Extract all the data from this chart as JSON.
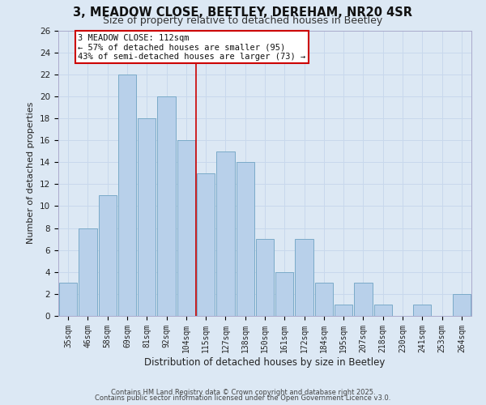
{
  "title": "3, MEADOW CLOSE, BEETLEY, DEREHAM, NR20 4SR",
  "subtitle": "Size of property relative to detached houses in Beetley",
  "xlabel": "Distribution of detached houses by size in Beetley",
  "ylabel": "Number of detached properties",
  "categories": [
    "35sqm",
    "46sqm",
    "58sqm",
    "69sqm",
    "81sqm",
    "92sqm",
    "104sqm",
    "115sqm",
    "127sqm",
    "138sqm",
    "150sqm",
    "161sqm",
    "172sqm",
    "184sqm",
    "195sqm",
    "207sqm",
    "218sqm",
    "230sqm",
    "241sqm",
    "253sqm",
    "264sqm"
  ],
  "values": [
    3,
    8,
    11,
    22,
    18,
    20,
    16,
    13,
    15,
    14,
    7,
    4,
    7,
    3,
    1,
    3,
    1,
    0,
    1,
    0,
    2
  ],
  "bar_color": "#b8d0ea",
  "bar_edge_color": "#7aaac8",
  "grid_color": "#c8d8ec",
  "background_color": "#dce8f4",
  "vline_color": "#cc0000",
  "annotation_text": "3 MEADOW CLOSE: 112sqm\n← 57% of detached houses are smaller (95)\n43% of semi-detached houses are larger (73) →",
  "annotation_box_color": "#ffffff",
  "annotation_box_edge_color": "#cc0000",
  "ylim": [
    0,
    26
  ],
  "yticks": [
    0,
    2,
    4,
    6,
    8,
    10,
    12,
    14,
    16,
    18,
    20,
    22,
    24,
    26
  ],
  "footer1": "Contains HM Land Registry data © Crown copyright and database right 2025.",
  "footer2": "Contains public sector information licensed under the Open Government Licence v3.0."
}
